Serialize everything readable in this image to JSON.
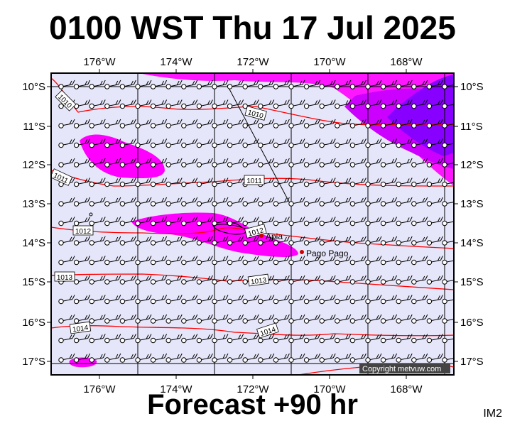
{
  "title": "0100 WST Thu 17 Jul 2025",
  "footer": "Forecast +90 hr",
  "image_tag": "IM2",
  "copyright": "Copyright metvuw.com",
  "longitude_labels": [
    "176°W",
    "174°W",
    "172°W",
    "170°W",
    "168°W"
  ],
  "latitude_labels": [
    "10°S",
    "11°S",
    "12°S",
    "13°S",
    "14°S",
    "15°S",
    "16°S",
    "17°S"
  ],
  "cities": [
    {
      "name": "Apia",
      "lon": -171.8,
      "lat": -13.83
    },
    {
      "name": "Pago Pago",
      "lon": -170.7,
      "lat": -14.28
    }
  ],
  "isobars": [
    {
      "label": "1010"
    },
    {
      "label": "1010"
    },
    {
      "label": "1011"
    },
    {
      "label": "1011"
    },
    {
      "label": "1012"
    },
    {
      "label": "1012"
    },
    {
      "label": "1013"
    },
    {
      "label": "1013"
    },
    {
      "label": "1014"
    },
    {
      "label": "1014"
    }
  ],
  "colors": {
    "background": "#e6e6fa",
    "precip_light": "#ff00ff",
    "precip_medium": "#cc00ff",
    "precip_heavy": "#8800ff",
    "isobar": "#ff0000"
  }
}
